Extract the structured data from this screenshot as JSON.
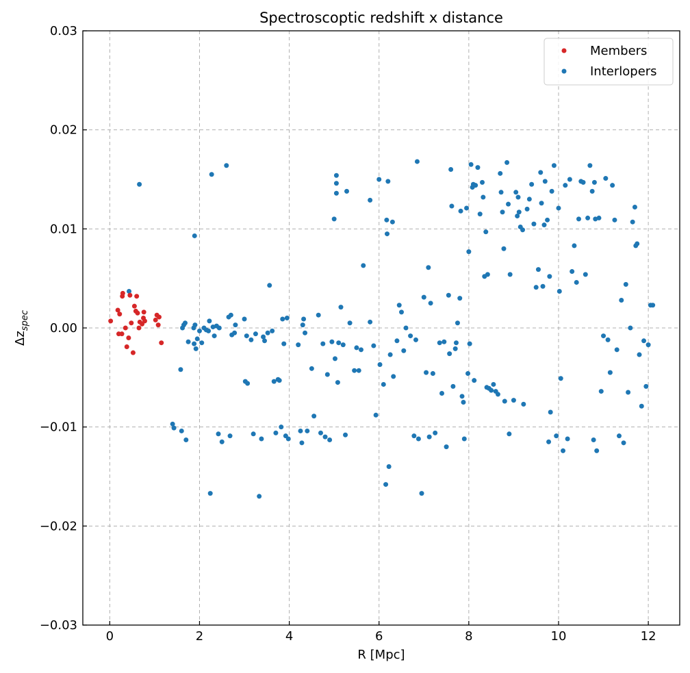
{
  "chart_data": {
    "type": "scatter",
    "title": "Spectroscoptic redshift x distance",
    "xlabel": "R [Mpc]",
    "ylabel_main": "Δz",
    "ylabel_sub": "spec",
    "xlim": [
      -0.6,
      12.7
    ],
    "ylim": [
      -0.03,
      0.03
    ],
    "xticks": [
      0,
      2,
      4,
      6,
      8,
      10,
      12
    ],
    "xtick_labels": [
      "0",
      "2",
      "4",
      "6",
      "8",
      "10",
      "12"
    ],
    "yticks": [
      -0.03,
      -0.02,
      -0.01,
      0.0,
      0.01,
      0.02,
      0.03
    ],
    "ytick_labels": [
      "−0.03",
      "−0.02",
      "−0.01",
      "0.00",
      "0.01",
      "0.02",
      "0.03"
    ],
    "grid": true,
    "legend_position": "top-right",
    "series": [
      {
        "name": "Members",
        "color": "#d62728",
        "points": [
          [
            0.02,
            0.0007
          ],
          [
            0.18,
            0.0018
          ],
          [
            0.2,
            -0.0006
          ],
          [
            0.22,
            0.0014
          ],
          [
            0.27,
            -0.0006
          ],
          [
            0.28,
            0.0032
          ],
          [
            0.29,
            0.0035
          ],
          [
            0.35,
            0.0
          ],
          [
            0.38,
            -0.0019
          ],
          [
            0.42,
            -0.001
          ],
          [
            0.45,
            0.0033
          ],
          [
            0.48,
            0.0005
          ],
          [
            0.52,
            -0.0025
          ],
          [
            0.55,
            0.0022
          ],
          [
            0.58,
            0.0017
          ],
          [
            0.6,
            0.0032
          ],
          [
            0.62,
            0.0015
          ],
          [
            0.65,
            0.0
          ],
          [
            0.67,
            0.0006
          ],
          [
            0.72,
            0.0004
          ],
          [
            0.75,
            0.001
          ],
          [
            0.76,
            0.0016
          ],
          [
            0.78,
            0.0007
          ],
          [
            1.02,
            0.0008
          ],
          [
            1.05,
            0.0013
          ],
          [
            1.08,
            0.0003
          ],
          [
            1.1,
            0.0011
          ],
          [
            1.15,
            -0.0015
          ]
        ]
      },
      {
        "name": "Interlopers",
        "color": "#1f77b4",
        "points": [
          [
            0.43,
            0.0037
          ],
          [
            0.66,
            0.0145
          ],
          [
            1.4,
            -0.0097
          ],
          [
            1.43,
            -0.0101
          ],
          [
            1.58,
            -0.0042
          ],
          [
            1.6,
            -0.0104
          ],
          [
            1.62,
            0.0
          ],
          [
            1.65,
            0.0003
          ],
          [
            1.68,
            0.0005
          ],
          [
            1.7,
            -0.0113
          ],
          [
            1.75,
            -0.0014
          ],
          [
            1.87,
            0.0
          ],
          [
            1.88,
            -0.0016
          ],
          [
            1.89,
            0.0093
          ],
          [
            1.9,
            0.0003
          ],
          [
            1.92,
            -0.0021
          ],
          [
            1.95,
            -0.0011
          ],
          [
            2.0,
            -0.0003
          ],
          [
            2.05,
            -0.0015
          ],
          [
            2.1,
            0.0
          ],
          [
            2.15,
            -0.0002
          ],
          [
            2.2,
            -0.0003
          ],
          [
            2.22,
            0.0007
          ],
          [
            2.24,
            -0.0167
          ],
          [
            2.27,
            0.0155
          ],
          [
            2.3,
            0.0001
          ],
          [
            2.33,
            -0.0008
          ],
          [
            2.38,
            0.0002
          ],
          [
            2.42,
            -0.0107
          ],
          [
            2.44,
            0.0
          ],
          [
            2.5,
            -0.0115
          ],
          [
            2.6,
            0.0164
          ],
          [
            2.65,
            0.0011
          ],
          [
            2.68,
            -0.0109
          ],
          [
            2.7,
            0.0013
          ],
          [
            2.72,
            -0.0007
          ],
          [
            2.78,
            -0.0005
          ],
          [
            2.8,
            0.0003
          ],
          [
            3.0,
            0.0009
          ],
          [
            3.02,
            -0.0054
          ],
          [
            3.05,
            -0.0008
          ],
          [
            3.07,
            -0.0056
          ],
          [
            3.15,
            -0.0012
          ],
          [
            3.2,
            -0.0107
          ],
          [
            3.25,
            -0.0006
          ],
          [
            3.33,
            -0.017
          ],
          [
            3.38,
            -0.0112
          ],
          [
            3.42,
            -0.0009
          ],
          [
            3.45,
            -0.0013
          ],
          [
            3.52,
            -0.0005
          ],
          [
            3.56,
            0.0043
          ],
          [
            3.62,
            -0.0003
          ],
          [
            3.66,
            -0.0054
          ],
          [
            3.7,
            -0.0106
          ],
          [
            3.75,
            -0.0052
          ],
          [
            3.78,
            -0.0053
          ],
          [
            3.82,
            -0.01
          ],
          [
            3.85,
            0.0009
          ],
          [
            3.88,
            -0.0016
          ],
          [
            3.92,
            -0.0109
          ],
          [
            3.95,
            0.001
          ],
          [
            3.98,
            -0.0112
          ],
          [
            4.2,
            -0.0017
          ],
          [
            4.25,
            -0.0104
          ],
          [
            4.28,
            -0.0116
          ],
          [
            4.3,
            0.0003
          ],
          [
            4.32,
            0.0009
          ],
          [
            4.35,
            -0.0005
          ],
          [
            4.4,
            -0.0104
          ],
          [
            4.5,
            -0.0041
          ],
          [
            4.55,
            -0.0089
          ],
          [
            4.65,
            0.0013
          ],
          [
            4.7,
            -0.0106
          ],
          [
            4.75,
            -0.0016
          ],
          [
            4.8,
            -0.011
          ],
          [
            4.85,
            -0.0047
          ],
          [
            4.9,
            -0.0113
          ],
          [
            4.95,
            -0.0014
          ],
          [
            5.0,
            0.011
          ],
          [
            5.02,
            -0.0031
          ],
          [
            5.05,
            0.0136
          ],
          [
            5.05,
            0.0146
          ],
          [
            5.05,
            0.0154
          ],
          [
            5.08,
            -0.0055
          ],
          [
            5.1,
            -0.0015
          ],
          [
            5.15,
            0.0021
          ],
          [
            5.2,
            -0.0017
          ],
          [
            5.25,
            -0.0108
          ],
          [
            5.28,
            0.0138
          ],
          [
            5.35,
            0.0005
          ],
          [
            5.45,
            -0.0043
          ],
          [
            5.5,
            -0.002
          ],
          [
            5.55,
            -0.0043
          ],
          [
            5.6,
            -0.0022
          ],
          [
            5.65,
            0.0063
          ],
          [
            5.8,
            0.0129
          ],
          [
            5.8,
            0.0006
          ],
          [
            5.88,
            -0.0018
          ],
          [
            5.93,
            -0.0088
          ],
          [
            6.0,
            0.015
          ],
          [
            6.02,
            -0.0037
          ],
          [
            6.1,
            -0.0057
          ],
          [
            6.15,
            -0.0158
          ],
          [
            6.17,
            0.0109
          ],
          [
            6.18,
            0.0095
          ],
          [
            6.2,
            0.0148
          ],
          [
            6.22,
            -0.014
          ],
          [
            6.25,
            -0.0027
          ],
          [
            6.3,
            0.0107
          ],
          [
            6.32,
            -0.0049
          ],
          [
            6.4,
            -0.0013
          ],
          [
            6.45,
            0.0023
          ],
          [
            6.5,
            0.0016
          ],
          [
            6.55,
            -0.0023
          ],
          [
            6.6,
            0.0
          ],
          [
            6.7,
            -0.0008
          ],
          [
            6.78,
            -0.0109
          ],
          [
            6.82,
            -0.0012
          ],
          [
            6.85,
            0.0168
          ],
          [
            6.88,
            -0.0112
          ],
          [
            6.95,
            -0.0167
          ],
          [
            7.0,
            0.0031
          ],
          [
            7.05,
            -0.0045
          ],
          [
            7.1,
            0.0061
          ],
          [
            7.12,
            -0.011
          ],
          [
            7.15,
            0.0025
          ],
          [
            7.2,
            -0.0046
          ],
          [
            7.25,
            -0.0106
          ],
          [
            7.35,
            -0.0015
          ],
          [
            7.4,
            -0.0066
          ],
          [
            7.45,
            -0.0014
          ],
          [
            7.5,
            -0.012
          ],
          [
            7.55,
            0.0033
          ],
          [
            7.57,
            -0.0026
          ],
          [
            7.6,
            0.016
          ],
          [
            7.62,
            0.0123
          ],
          [
            7.65,
            -0.0059
          ],
          [
            7.7,
            -0.0021
          ],
          [
            7.72,
            -0.0015
          ],
          [
            7.75,
            0.0005
          ],
          [
            7.8,
            0.003
          ],
          [
            7.82,
            0.0118
          ],
          [
            7.85,
            -0.0069
          ],
          [
            7.88,
            -0.0075
          ],
          [
            7.9,
            -0.0112
          ],
          [
            7.95,
            0.0121
          ],
          [
            7.98,
            -0.0046
          ],
          [
            8.0,
            0.0077
          ],
          [
            8.02,
            -0.0016
          ],
          [
            8.05,
            0.0165
          ],
          [
            8.08,
            0.0142
          ],
          [
            8.1,
            0.0145
          ],
          [
            8.12,
            -0.0053
          ],
          [
            8.15,
            0.0144
          ],
          [
            8.2,
            0.0162
          ],
          [
            8.25,
            0.0115
          ],
          [
            8.3,
            0.0147
          ],
          [
            8.32,
            0.0132
          ],
          [
            8.35,
            0.0052
          ],
          [
            8.38,
            0.0097
          ],
          [
            8.4,
            -0.006
          ],
          [
            8.42,
            0.0054
          ],
          [
            8.45,
            -0.0061
          ],
          [
            8.5,
            -0.0063
          ],
          [
            8.55,
            -0.0057
          ],
          [
            8.6,
            -0.0064
          ],
          [
            8.65,
            -0.0067
          ],
          [
            8.7,
            0.0156
          ],
          [
            8.72,
            0.0137
          ],
          [
            8.75,
            0.0117
          ],
          [
            8.78,
            0.008
          ],
          [
            8.8,
            -0.0074
          ],
          [
            8.85,
            0.0167
          ],
          [
            8.88,
            0.0125
          ],
          [
            8.9,
            -0.0107
          ],
          [
            8.92,
            0.0054
          ],
          [
            9.0,
            -0.0073
          ],
          [
            9.05,
            0.0137
          ],
          [
            9.08,
            0.0113
          ],
          [
            9.1,
            0.0132
          ],
          [
            9.12,
            0.0117
          ],
          [
            9.15,
            0.0102
          ],
          [
            9.2,
            0.0099
          ],
          [
            9.22,
            -0.0077
          ],
          [
            9.3,
            0.012
          ],
          [
            9.35,
            0.013
          ],
          [
            9.4,
            0.0145
          ],
          [
            9.45,
            0.0105
          ],
          [
            9.5,
            0.0041
          ],
          [
            9.55,
            0.0059
          ],
          [
            9.6,
            0.0157
          ],
          [
            9.62,
            0.0126
          ],
          [
            9.65,
            0.0042
          ],
          [
            9.68,
            0.0104
          ],
          [
            9.7,
            0.0148
          ],
          [
            9.75,
            0.0109
          ],
          [
            9.78,
            -0.0115
          ],
          [
            9.8,
            0.0052
          ],
          [
            9.82,
            -0.0085
          ],
          [
            9.85,
            0.0138
          ],
          [
            9.9,
            0.0164
          ],
          [
            9.95,
            -0.0109
          ],
          [
            10.0,
            0.0121
          ],
          [
            10.02,
            0.0037
          ],
          [
            10.05,
            -0.0051
          ],
          [
            10.1,
            -0.0124
          ],
          [
            10.15,
            0.0144
          ],
          [
            10.2,
            -0.0112
          ],
          [
            10.25,
            0.015
          ],
          [
            10.3,
            0.0057
          ],
          [
            10.35,
            0.0083
          ],
          [
            10.4,
            0.0046
          ],
          [
            10.45,
            0.011
          ],
          [
            10.5,
            0.0148
          ],
          [
            10.55,
            0.0147
          ],
          [
            10.6,
            0.0054
          ],
          [
            10.65,
            0.0111
          ],
          [
            10.7,
            0.0164
          ],
          [
            10.75,
            0.0138
          ],
          [
            10.78,
            -0.0113
          ],
          [
            10.8,
            0.0147
          ],
          [
            10.82,
            0.011
          ],
          [
            10.85,
            -0.0124
          ],
          [
            10.9,
            0.0111
          ],
          [
            10.95,
            -0.0064
          ],
          [
            11.0,
            -0.0008
          ],
          [
            11.05,
            0.0151
          ],
          [
            11.1,
            -0.0012
          ],
          [
            11.15,
            -0.0045
          ],
          [
            11.2,
            0.0144
          ],
          [
            11.25,
            0.0109
          ],
          [
            11.3,
            -0.0022
          ],
          [
            11.35,
            -0.0109
          ],
          [
            11.4,
            0.0028
          ],
          [
            11.45,
            -0.0116
          ],
          [
            11.5,
            0.0044
          ],
          [
            11.55,
            -0.0065
          ],
          [
            11.6,
            0.0
          ],
          [
            11.65,
            0.0107
          ],
          [
            11.7,
            0.0122
          ],
          [
            11.72,
            0.0083
          ],
          [
            11.75,
            0.0085
          ],
          [
            11.8,
            -0.0027
          ],
          [
            11.85,
            -0.0079
          ],
          [
            11.9,
            -0.0013
          ],
          [
            11.95,
            -0.0059
          ],
          [
            12.0,
            -0.0017
          ],
          [
            12.05,
            0.0023
          ],
          [
            12.1,
            0.0023
          ]
        ]
      }
    ]
  }
}
